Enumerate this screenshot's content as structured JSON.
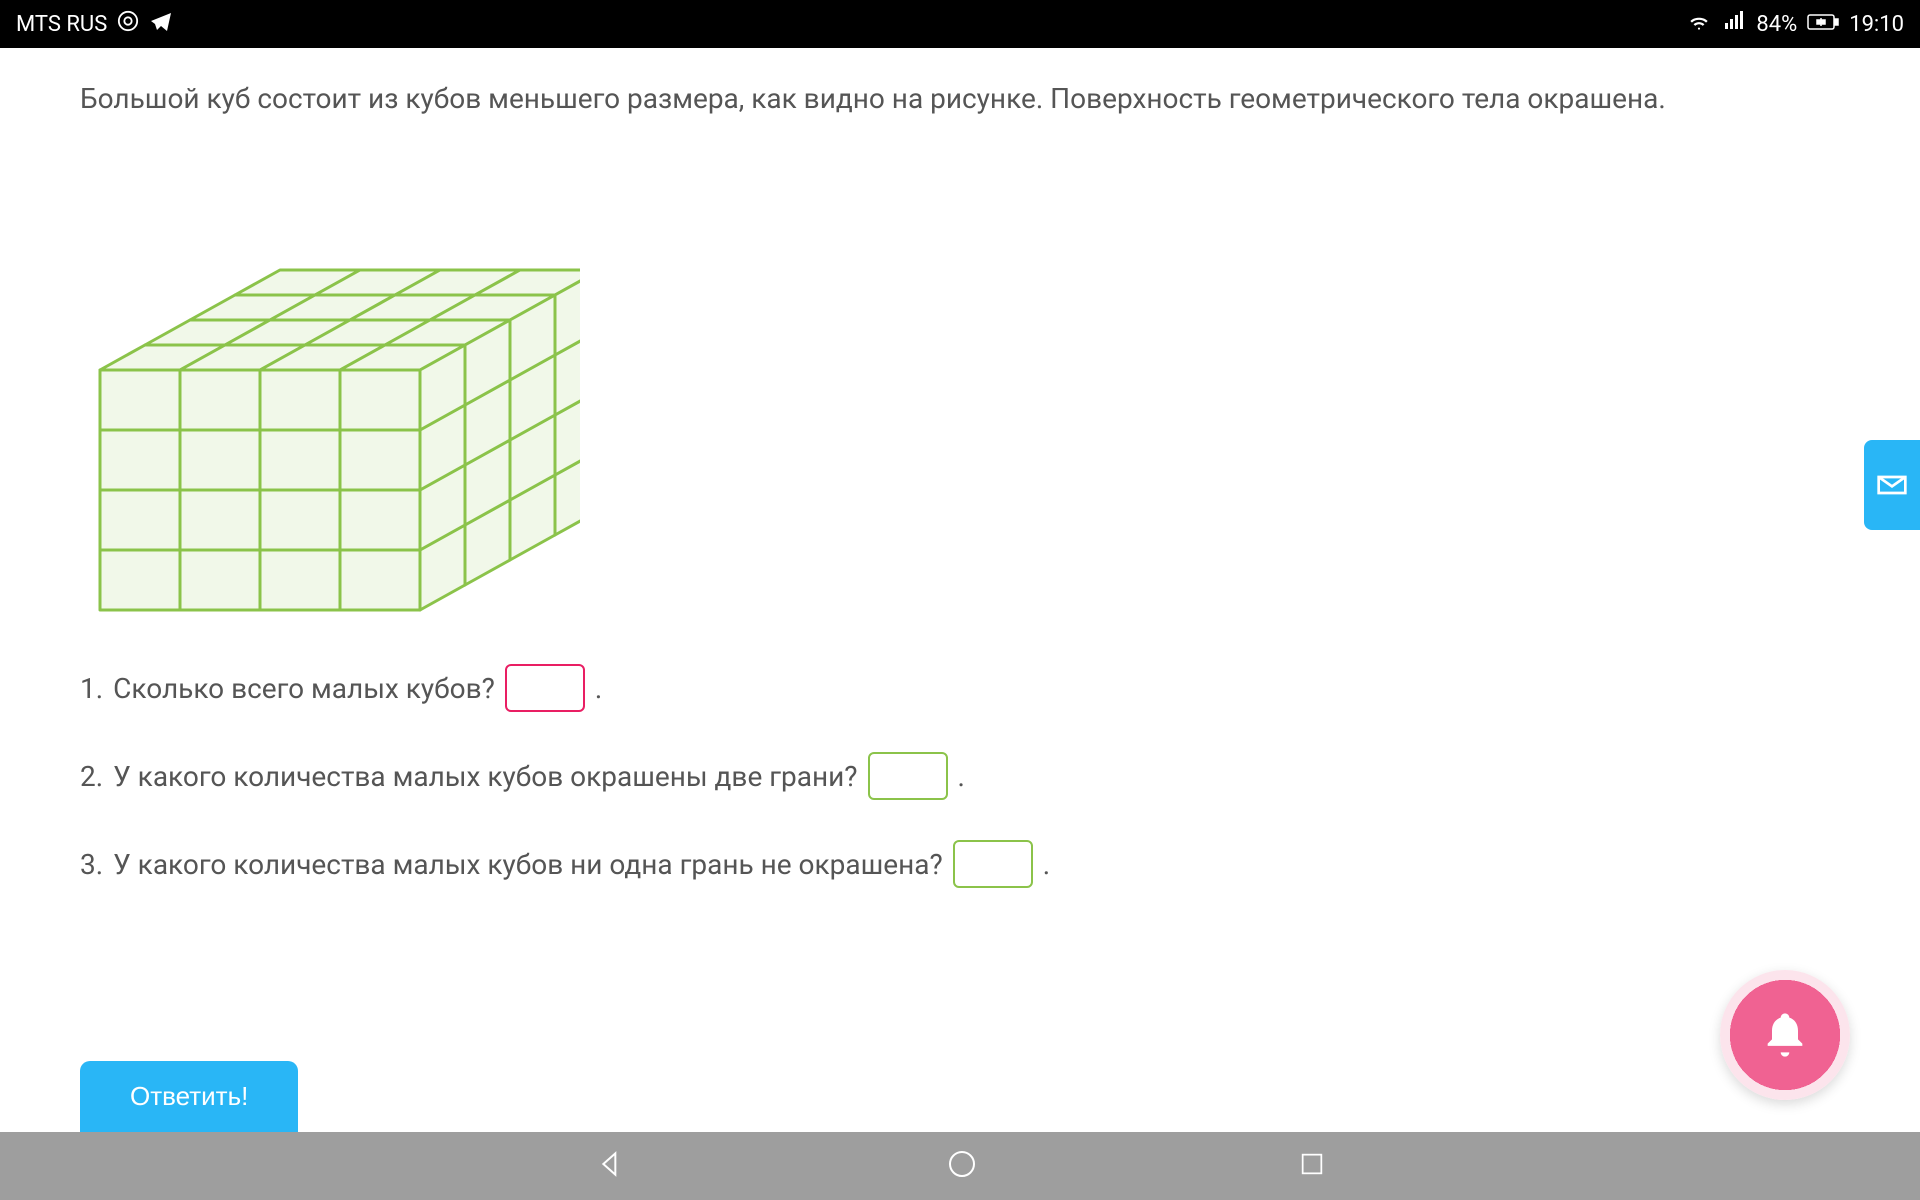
{
  "status_bar": {
    "carrier": "MTS RUS",
    "battery_pct": "84%",
    "time": "19:10"
  },
  "problem": {
    "description": "Большой куб состоит из кубов меньшего размера, как видно на рисунке. Поверхность геометрического тела окрашена.",
    "cube": {
      "grid_size": 4,
      "fill_color": "#f1f8e9",
      "stroke_color": "#8bc34a",
      "stroke_width": 3
    },
    "questions": [
      {
        "num": "1.",
        "text": "Сколько всего малых кубов?",
        "input_style": "pink"
      },
      {
        "num": "2.",
        "text": "У какого количества малых кубов окрашены две грани?",
        "input_style": "green"
      },
      {
        "num": "3.",
        "text": "У какого количества малых кубов ни одна грань не окрашена?",
        "input_style": "green"
      }
    ],
    "period": "."
  },
  "buttons": {
    "submit": "Ответить!"
  },
  "colors": {
    "accent_blue": "#29b6f6",
    "accent_pink": "#f06292",
    "text": "#555555"
  }
}
